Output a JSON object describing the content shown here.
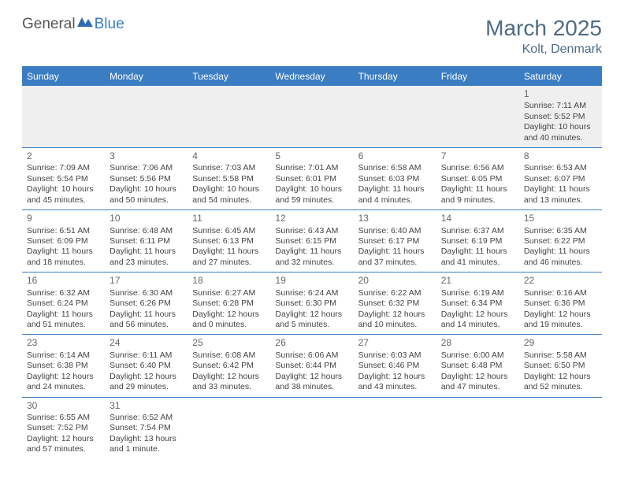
{
  "logo": {
    "part1": "General",
    "part2": "Blue"
  },
  "title": {
    "month": "March 2025",
    "location": "Kolt, Denmark"
  },
  "colors": {
    "header_bg": "#3b7dc2",
    "header_text": "#ffffff",
    "accent": "#3b7dc2",
    "muted_bg": "#efefef",
    "title_color": "#4f6b85"
  },
  "weekdays": [
    "Sunday",
    "Monday",
    "Tuesday",
    "Wednesday",
    "Thursday",
    "Friday",
    "Saturday"
  ],
  "weeks": [
    [
      null,
      null,
      null,
      null,
      null,
      null,
      {
        "n": "1",
        "sunrise": "Sunrise: 7:11 AM",
        "sunset": "Sunset: 5:52 PM",
        "day1": "Daylight: 10 hours",
        "day2": "and 40 minutes."
      }
    ],
    [
      {
        "n": "2",
        "sunrise": "Sunrise: 7:09 AM",
        "sunset": "Sunset: 5:54 PM",
        "day1": "Daylight: 10 hours",
        "day2": "and 45 minutes."
      },
      {
        "n": "3",
        "sunrise": "Sunrise: 7:06 AM",
        "sunset": "Sunset: 5:56 PM",
        "day1": "Daylight: 10 hours",
        "day2": "and 50 minutes."
      },
      {
        "n": "4",
        "sunrise": "Sunrise: 7:03 AM",
        "sunset": "Sunset: 5:58 PM",
        "day1": "Daylight: 10 hours",
        "day2": "and 54 minutes."
      },
      {
        "n": "5",
        "sunrise": "Sunrise: 7:01 AM",
        "sunset": "Sunset: 6:01 PM",
        "day1": "Daylight: 10 hours",
        "day2": "and 59 minutes."
      },
      {
        "n": "6",
        "sunrise": "Sunrise: 6:58 AM",
        "sunset": "Sunset: 6:03 PM",
        "day1": "Daylight: 11 hours",
        "day2": "and 4 minutes."
      },
      {
        "n": "7",
        "sunrise": "Sunrise: 6:56 AM",
        "sunset": "Sunset: 6:05 PM",
        "day1": "Daylight: 11 hours",
        "day2": "and 9 minutes."
      },
      {
        "n": "8",
        "sunrise": "Sunrise: 6:53 AM",
        "sunset": "Sunset: 6:07 PM",
        "day1": "Daylight: 11 hours",
        "day2": "and 13 minutes."
      }
    ],
    [
      {
        "n": "9",
        "sunrise": "Sunrise: 6:51 AM",
        "sunset": "Sunset: 6:09 PM",
        "day1": "Daylight: 11 hours",
        "day2": "and 18 minutes."
      },
      {
        "n": "10",
        "sunrise": "Sunrise: 6:48 AM",
        "sunset": "Sunset: 6:11 PM",
        "day1": "Daylight: 11 hours",
        "day2": "and 23 minutes."
      },
      {
        "n": "11",
        "sunrise": "Sunrise: 6:45 AM",
        "sunset": "Sunset: 6:13 PM",
        "day1": "Daylight: 11 hours",
        "day2": "and 27 minutes."
      },
      {
        "n": "12",
        "sunrise": "Sunrise: 6:43 AM",
        "sunset": "Sunset: 6:15 PM",
        "day1": "Daylight: 11 hours",
        "day2": "and 32 minutes."
      },
      {
        "n": "13",
        "sunrise": "Sunrise: 6:40 AM",
        "sunset": "Sunset: 6:17 PM",
        "day1": "Daylight: 11 hours",
        "day2": "and 37 minutes."
      },
      {
        "n": "14",
        "sunrise": "Sunrise: 6:37 AM",
        "sunset": "Sunset: 6:19 PM",
        "day1": "Daylight: 11 hours",
        "day2": "and 41 minutes."
      },
      {
        "n": "15",
        "sunrise": "Sunrise: 6:35 AM",
        "sunset": "Sunset: 6:22 PM",
        "day1": "Daylight: 11 hours",
        "day2": "and 46 minutes."
      }
    ],
    [
      {
        "n": "16",
        "sunrise": "Sunrise: 6:32 AM",
        "sunset": "Sunset: 6:24 PM",
        "day1": "Daylight: 11 hours",
        "day2": "and 51 minutes."
      },
      {
        "n": "17",
        "sunrise": "Sunrise: 6:30 AM",
        "sunset": "Sunset: 6:26 PM",
        "day1": "Daylight: 11 hours",
        "day2": "and 56 minutes."
      },
      {
        "n": "18",
        "sunrise": "Sunrise: 6:27 AM",
        "sunset": "Sunset: 6:28 PM",
        "day1": "Daylight: 12 hours",
        "day2": "and 0 minutes."
      },
      {
        "n": "19",
        "sunrise": "Sunrise: 6:24 AM",
        "sunset": "Sunset: 6:30 PM",
        "day1": "Daylight: 12 hours",
        "day2": "and 5 minutes."
      },
      {
        "n": "20",
        "sunrise": "Sunrise: 6:22 AM",
        "sunset": "Sunset: 6:32 PM",
        "day1": "Daylight: 12 hours",
        "day2": "and 10 minutes."
      },
      {
        "n": "21",
        "sunrise": "Sunrise: 6:19 AM",
        "sunset": "Sunset: 6:34 PM",
        "day1": "Daylight: 12 hours",
        "day2": "and 14 minutes."
      },
      {
        "n": "22",
        "sunrise": "Sunrise: 6:16 AM",
        "sunset": "Sunset: 6:36 PM",
        "day1": "Daylight: 12 hours",
        "day2": "and 19 minutes."
      }
    ],
    [
      {
        "n": "23",
        "sunrise": "Sunrise: 6:14 AM",
        "sunset": "Sunset: 6:38 PM",
        "day1": "Daylight: 12 hours",
        "day2": "and 24 minutes."
      },
      {
        "n": "24",
        "sunrise": "Sunrise: 6:11 AM",
        "sunset": "Sunset: 6:40 PM",
        "day1": "Daylight: 12 hours",
        "day2": "and 29 minutes."
      },
      {
        "n": "25",
        "sunrise": "Sunrise: 6:08 AM",
        "sunset": "Sunset: 6:42 PM",
        "day1": "Daylight: 12 hours",
        "day2": "and 33 minutes."
      },
      {
        "n": "26",
        "sunrise": "Sunrise: 6:06 AM",
        "sunset": "Sunset: 6:44 PM",
        "day1": "Daylight: 12 hours",
        "day2": "and 38 minutes."
      },
      {
        "n": "27",
        "sunrise": "Sunrise: 6:03 AM",
        "sunset": "Sunset: 6:46 PM",
        "day1": "Daylight: 12 hours",
        "day2": "and 43 minutes."
      },
      {
        "n": "28",
        "sunrise": "Sunrise: 6:00 AM",
        "sunset": "Sunset: 6:48 PM",
        "day1": "Daylight: 12 hours",
        "day2": "and 47 minutes."
      },
      {
        "n": "29",
        "sunrise": "Sunrise: 5:58 AM",
        "sunset": "Sunset: 6:50 PM",
        "day1": "Daylight: 12 hours",
        "day2": "and 52 minutes."
      }
    ],
    [
      {
        "n": "30",
        "sunrise": "Sunrise: 6:55 AM",
        "sunset": "Sunset: 7:52 PM",
        "day1": "Daylight: 12 hours",
        "day2": "and 57 minutes."
      },
      {
        "n": "31",
        "sunrise": "Sunrise: 6:52 AM",
        "sunset": "Sunset: 7:54 PM",
        "day1": "Daylight: 13 hours",
        "day2": "and 1 minute."
      },
      null,
      null,
      null,
      null,
      null
    ]
  ]
}
